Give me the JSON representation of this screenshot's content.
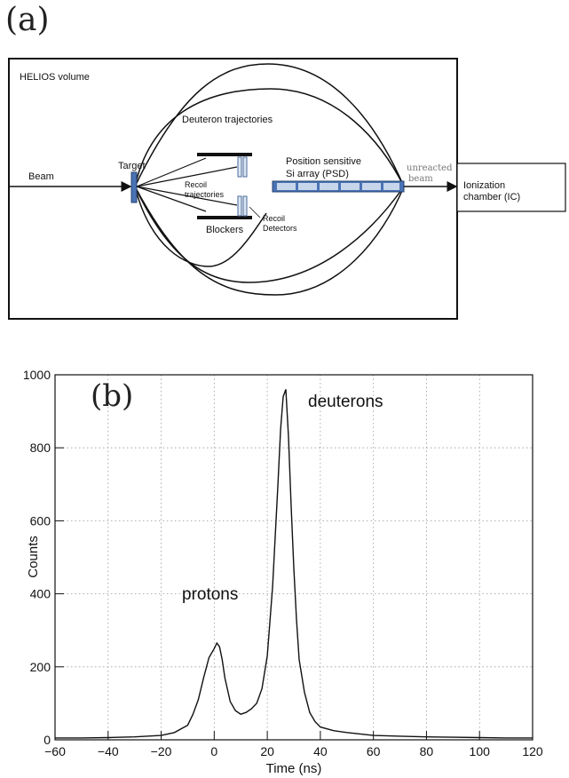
{
  "panel_a": {
    "label": "(a)",
    "volume_label": "HELIOS volume",
    "deuteron_label": "Deuteron trajectories",
    "beam_label": "Beam",
    "target_label": "Target",
    "recoil_traj_line1": "Recoil",
    "recoil_traj_line2": "trajectories",
    "blockers_label": "Blockers",
    "recoil_det_line1": "Recoil",
    "recoil_det_line2": "Detectors",
    "psd_line1": "Position sensitive",
    "psd_line2": "Si array (PSD)",
    "unreacted_line1": "unreacted",
    "unreacted_line2": "beam",
    "ic_line1": "Ionization",
    "ic_line2": "chamber (IC)"
  },
  "panel_b": {
    "label": "(b)",
    "ylabel": "Counts",
    "xlabel": "Time (ns)",
    "annotation_protons": "protons",
    "annotation_deuterons": "deuterons"
  },
  "chart_data": {
    "type": "line",
    "title": "",
    "xlabel": "Time (ns)",
    "ylabel": "Counts",
    "xlim": [
      -60,
      120
    ],
    "ylim": [
      0,
      1000
    ],
    "xticks": [
      -60,
      -40,
      -20,
      0,
      20,
      40,
      60,
      80,
      100,
      120
    ],
    "yticks": [
      0,
      200,
      400,
      600,
      800,
      1000
    ],
    "grid": true,
    "series": [
      {
        "x": [
          -60,
          -50,
          -40,
          -30,
          -20,
          -15,
          -10,
          -8,
          -6,
          -4,
          -2,
          0,
          1,
          2,
          3,
          4,
          6,
          8,
          10,
          12,
          14,
          16,
          18,
          20,
          22,
          23,
          24,
          25,
          26,
          27,
          28,
          29,
          30,
          31,
          32,
          34,
          36,
          38,
          40,
          45,
          50,
          60,
          70,
          80,
          90,
          100,
          110,
          120
        ],
        "y": [
          5,
          5,
          6,
          8,
          12,
          20,
          40,
          70,
          110,
          170,
          225,
          250,
          265,
          255,
          220,
          170,
          105,
          80,
          70,
          75,
          85,
          100,
          140,
          230,
          420,
          560,
          700,
          850,
          940,
          960,
          830,
          640,
          470,
          330,
          220,
          130,
          75,
          50,
          35,
          25,
          20,
          12,
          10,
          8,
          7,
          6,
          5,
          5
        ]
      }
    ],
    "annotations": [
      "protons",
      "deuterons"
    ]
  }
}
